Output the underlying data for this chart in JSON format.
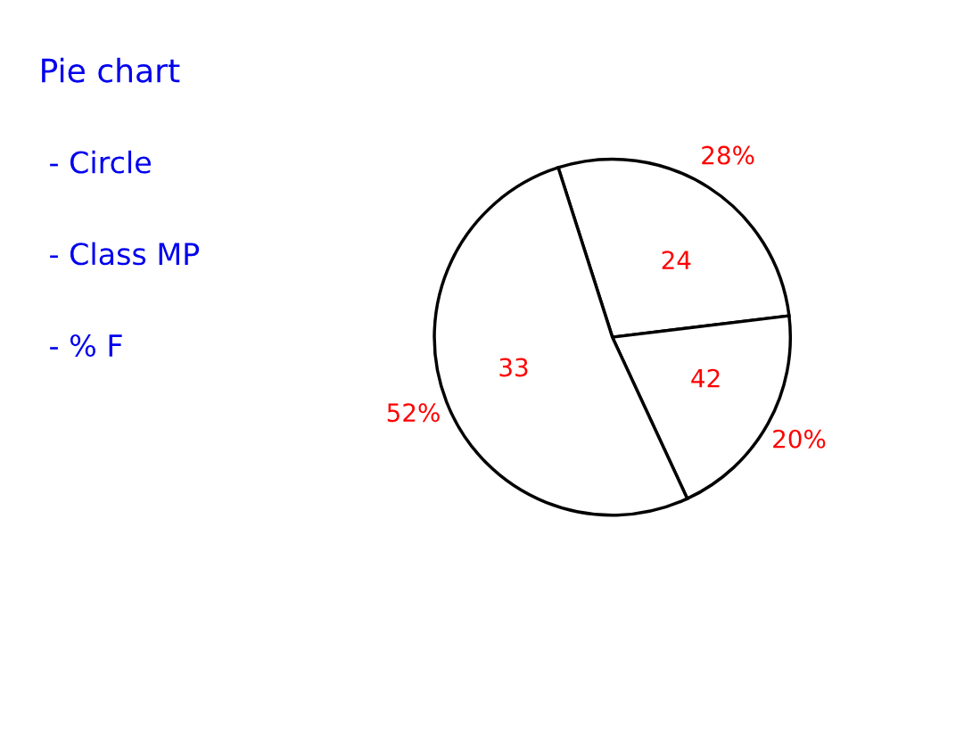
{
  "chart_data": {
    "type": "pie",
    "title": "Pie chart",
    "annotations": [
      "- Circle",
      "- Class MP",
      "- % F"
    ],
    "categories": [
      "24",
      "42",
      "33"
    ],
    "values": [
      28,
      20,
      52
    ],
    "value_labels": [
      "28%",
      "20%",
      "52%"
    ],
    "colors": [
      "#ffffff",
      "#ffffff",
      "#ffffff"
    ]
  }
}
